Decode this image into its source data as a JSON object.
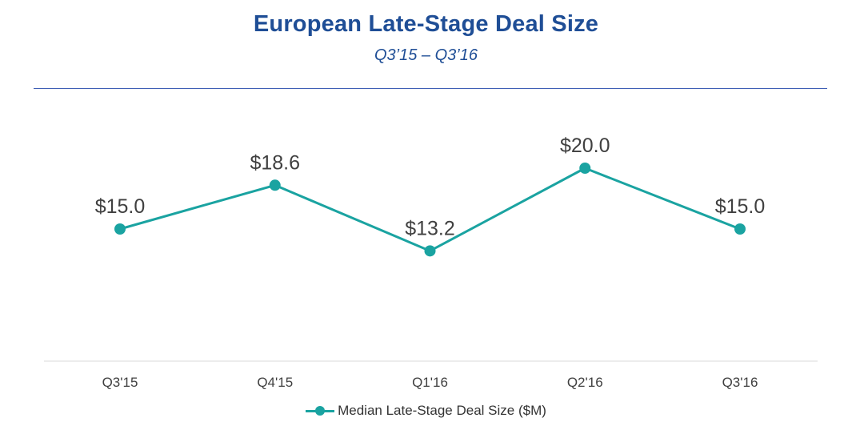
{
  "chart_data": {
    "type": "line",
    "title": "European Late-Stage Deal Size",
    "subtitle": "Q3’15 – Q3’16",
    "categories": [
      "Q3'15",
      "Q4'15",
      "Q1'16",
      "Q2'16",
      "Q3'16"
    ],
    "series": [
      {
        "name": "Median Late-Stage Deal Size ($M)",
        "values": [
          15.0,
          18.6,
          13.2,
          20.0,
          15.0
        ],
        "labels": [
          "$15.0",
          "$18.6",
          "$13.2",
          "$20.0",
          "$15.0"
        ],
        "color": "#1aa3a1"
      }
    ],
    "xlabel": "",
    "ylabel": "",
    "ylim": [
      -20,
      30
    ],
    "grid": false,
    "legend": "bottom-center"
  }
}
